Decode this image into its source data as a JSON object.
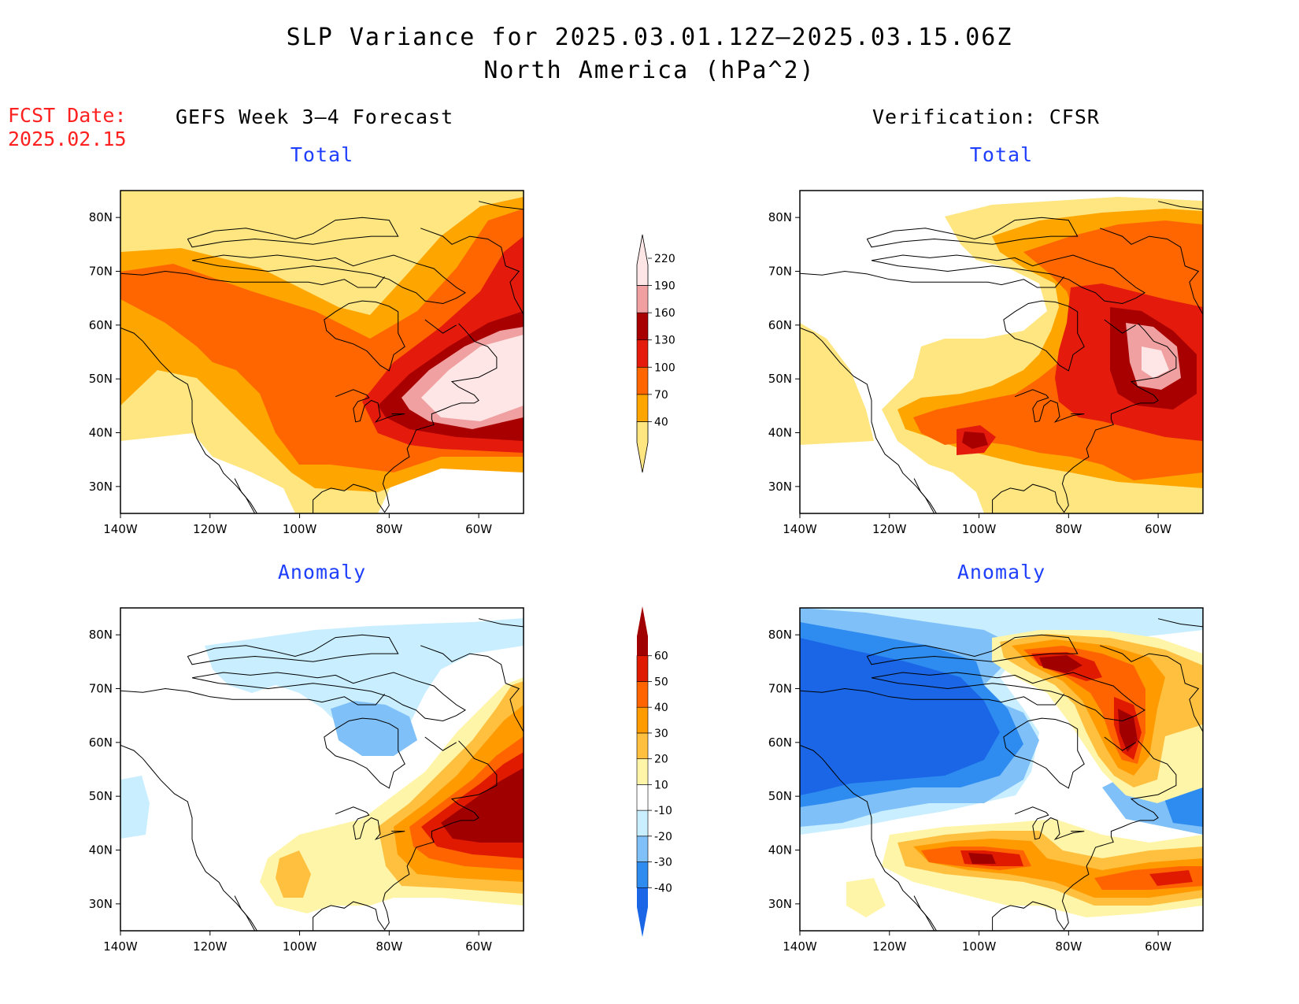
{
  "title": {
    "line1": "SLP Variance for 2025.03.01.12Z–2025.03.15.06Z",
    "line2": "North America (hPa^2)"
  },
  "fcst": {
    "line1": "FCST Date:",
    "line2": "2025.02.15"
  },
  "columns": {
    "left": "GEFS Week 3–4 Forecast",
    "right": "Verification: CFSR"
  },
  "panel_titles": {
    "total": "Total",
    "anomaly": "Anomaly"
  },
  "axes": {
    "lon_labels": [
      "140W",
      "120W",
      "100W",
      "80W",
      "60W"
    ],
    "lat_labels": [
      "80N",
      "70N",
      "60N",
      "50N",
      "40N",
      "30N"
    ]
  },
  "colorbars": {
    "total": {
      "levels": [
        "40",
        "70",
        "100",
        "130",
        "160",
        "190",
        "220"
      ],
      "colors": [
        "#ffe680",
        "#ffa500",
        "#ff6600",
        "#e31a0c",
        "#a80000",
        "#f0a0a0",
        "#ffe6e6"
      ]
    },
    "anomaly": {
      "levels": [
        "-40",
        "-30",
        "-20",
        "-10",
        "10",
        "20",
        "30",
        "40",
        "50",
        "60"
      ],
      "colors": [
        "#1a66e6",
        "#2e8cf0",
        "#80c0f8",
        "#c8eeff",
        "#ffffff",
        "#fff5a8",
        "#ffc040",
        "#ff9a00",
        "#ff6400",
        "#e01a00",
        "#a00000"
      ]
    }
  },
  "colors": {
    "white": "#ffffff",
    "yellow": "#ffe680",
    "orange": "#ffa500",
    "darkorange": "#ff6600",
    "red": "#e31a0c",
    "darkred": "#a80000",
    "pink": "#f0a0a0",
    "lightpink": "#ffe6e6",
    "paleyellow": "#fff5a8",
    "lightorange": "#ffc040",
    "paleblue": "#c8eeff",
    "lightblue": "#80c0f8",
    "midblue": "#2e8cf0",
    "blue": "#1a66e6"
  }
}
